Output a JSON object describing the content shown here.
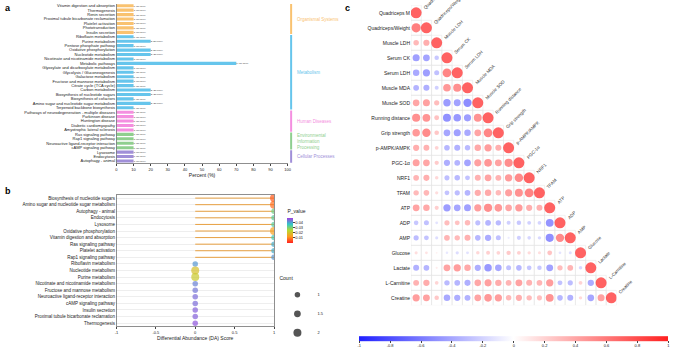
{
  "chart_data": [
    {
      "type": "bar",
      "title": "a",
      "orientation": "horizontal",
      "x_label": "Percent (%)",
      "xlim": [
        0,
        100
      ],
      "xticks": [
        0,
        10,
        20,
        30,
        40,
        50,
        60,
        70,
        80,
        90,
        100
      ],
      "categories": [
        "Vitamin digestion and absorption",
        "Thermogenesis",
        "Renin secretion",
        "Proximal tubule bicarbonate reclamation",
        "Platelet activation",
        "Phototransduction",
        "Insulin secretion",
        "Riboflavin metabolism",
        "Purine metabolism",
        "Pentose phosphate pathway",
        "Oxidative phosphorylation",
        "Nucleotide metabolism",
        "Nicotinate and nicotinamide metabolism",
        "Metabolic pathways",
        "Glyoxylate and dicarboxylate metabolism",
        "Glycolysis / Gluconeogenesis",
        "Galactose metabolism",
        "Fructose and mannose metabolism",
        "Citrate cycle (TCA cycle)",
        "Carbon metabolism",
        "Biosynthesis of nucleotide sugars",
        "Biosynthesis of cofactors",
        "Amino sugar and nucleotide sugar metabolism",
        "Terpenoid backbone biosynthesis",
        "Pathways of neurodegeneration - multiple diseases",
        "Parkinson disease",
        "Huntington disease",
        "Diabetic cardiomyopathy",
        "Amyotrophic lateral sclerosis",
        "Ras signaling pathway",
        "Rap1 signaling pathway",
        "Neuroactive ligand-receptor interaction",
        "cAMP signaling pathway",
        "Lysosome",
        "Endocytosis",
        "Autophagy - animal"
      ],
      "series": [
        {
          "name": "Organismal Systems",
          "color": "#f9c270",
          "values": [
            10,
            10,
            10,
            10,
            10,
            10,
            10,
            null,
            null,
            null,
            null,
            null,
            null,
            null,
            null,
            null,
            null,
            null,
            null,
            null,
            null,
            null,
            null,
            null,
            null,
            null,
            null,
            null,
            null,
            null,
            null,
            null,
            null,
            null,
            null,
            null
          ],
          "value_labels": [
            "1 (10.00%)",
            "1 (10.00%)",
            "1 (10.00%)",
            "1 (10.00%)",
            "1 (10.00%)",
            "1 (10.00%)",
            "1 (10.00%)",
            null,
            null,
            null,
            null,
            null,
            null,
            null,
            null,
            null,
            null,
            null,
            null,
            null,
            null,
            null,
            null,
            null,
            null,
            null,
            null,
            null,
            null,
            null,
            null,
            null,
            null,
            null,
            null,
            null
          ]
        },
        {
          "name": "Metabolism",
          "color": "#66c5ec",
          "values": [
            null,
            null,
            null,
            null,
            null,
            null,
            null,
            10,
            20,
            10,
            20,
            20,
            10,
            70,
            10,
            10,
            10,
            10,
            10,
            20,
            20,
            10,
            20,
            10,
            null,
            null,
            null,
            null,
            null,
            null,
            null,
            null,
            null,
            null,
            null,
            null
          ],
          "value_labels": [
            null,
            null,
            null,
            null,
            null,
            null,
            null,
            "1 (10.00%)",
            "2 (20.00%)",
            "1 (10.00%)",
            "2 (20.00%)",
            "2 (20.00%)",
            "1 (10.00%)",
            "7 (70.00%)",
            "1 (10.00%)",
            "1 (10.00%)",
            "1 (10.00%)",
            "1 (10.00%)",
            "1 (10.00%)",
            "2 (20.00%)",
            "2 (20.00%)",
            "1 (10.00%)",
            "2 (20.00%)",
            "1 (10.00%)",
            null,
            null,
            null,
            null,
            null,
            null,
            null,
            null,
            null,
            null,
            null,
            null
          ]
        },
        {
          "name": "Human Diseases",
          "color": "#f48fe0",
          "values": [
            null,
            null,
            null,
            null,
            null,
            null,
            null,
            null,
            null,
            null,
            null,
            null,
            null,
            null,
            null,
            null,
            null,
            null,
            null,
            null,
            null,
            null,
            null,
            null,
            10,
            10,
            10,
            10,
            10,
            null,
            null,
            null,
            null,
            null,
            null,
            null
          ],
          "value_labels": [
            null,
            null,
            null,
            null,
            null,
            null,
            null,
            null,
            null,
            null,
            null,
            null,
            null,
            null,
            null,
            null,
            null,
            null,
            null,
            null,
            null,
            null,
            null,
            null,
            "1 (10.00%)",
            "1 (10.00%)",
            "1 (10.00%)",
            "1 (10.00%)",
            "1 (10.00%)",
            null,
            null,
            null,
            null,
            null,
            null,
            null
          ]
        },
        {
          "name": "Environmental Information Processing",
          "color": "#8fcf8f",
          "values": [
            null,
            null,
            null,
            null,
            null,
            null,
            null,
            null,
            null,
            null,
            null,
            null,
            null,
            null,
            null,
            null,
            null,
            null,
            null,
            null,
            null,
            null,
            null,
            null,
            null,
            null,
            null,
            null,
            null,
            10,
            10,
            10,
            10,
            null,
            null,
            null
          ],
          "value_labels": [
            null,
            null,
            null,
            null,
            null,
            null,
            null,
            null,
            null,
            null,
            null,
            null,
            null,
            null,
            null,
            null,
            null,
            null,
            null,
            null,
            null,
            null,
            null,
            null,
            null,
            null,
            null,
            null,
            null,
            "1 (10.00%)",
            "1 (10.00%)",
            "1 (10.00%)",
            "1 (10.00%)",
            null,
            null,
            null
          ]
        },
        {
          "name": "Cellular Processes",
          "color": "#a08fd8",
          "values": [
            null,
            null,
            null,
            null,
            null,
            null,
            null,
            null,
            null,
            null,
            null,
            null,
            null,
            null,
            null,
            null,
            null,
            null,
            null,
            null,
            null,
            null,
            null,
            null,
            null,
            null,
            null,
            null,
            null,
            null,
            null,
            null,
            null,
            10,
            10,
            10
          ],
          "value_labels": [
            null,
            null,
            null,
            null,
            null,
            null,
            null,
            null,
            null,
            null,
            null,
            null,
            null,
            null,
            null,
            null,
            null,
            null,
            null,
            null,
            null,
            null,
            null,
            null,
            null,
            null,
            null,
            null,
            null,
            null,
            null,
            null,
            null,
            "1 (10.00%)",
            "1 (10.00%)",
            "1 (10.00%)"
          ]
        }
      ]
    },
    {
      "type": "scatter",
      "title": "b",
      "x_label": "Differential Abundance (DA) Score",
      "xlim": [
        -1,
        1
      ],
      "xticks": [
        -1,
        -0.5,
        0,
        0.5,
        1
      ],
      "categories": [
        "Biosynthesis of nucleotide sugars",
        "Amino sugar and nucleotide sugar metabolism",
        "Autophagy - animal",
        "Endocytosis",
        "Lysosome",
        "Oxidative phosphorylation",
        "Vitamin digestion and absorption",
        "Ras signaling pathway",
        "Platelet activation",
        "Rap1 signaling pathway",
        "Riboflavin metabolism",
        "Nucleotide metabolism",
        "Purine metabolism",
        "Nicotinate and nicotinamide metabolism",
        "Fructose and mannose metabolism",
        "Neuroactive ligand-receptor interaction",
        "cAMP signaling pathway",
        "Insulin secretion",
        "Proximal tubule bicarbonate reclamation",
        "Thermogenesis"
      ],
      "values": [
        1,
        1,
        1,
        1,
        1,
        1,
        1,
        1,
        1,
        1,
        0,
        0,
        0,
        0,
        0,
        0,
        0,
        0,
        0,
        0
      ],
      "counts": [
        2,
        2,
        1,
        1,
        1,
        2,
        1,
        1,
        1,
        1,
        1,
        2,
        2,
        1,
        1,
        1,
        1,
        1,
        1,
        1
      ],
      "p_values": [
        0.006,
        0.008,
        0.032,
        0.034,
        0.034,
        0.014,
        0.036,
        0.04,
        0.04,
        0.042,
        0.042,
        0.02,
        0.022,
        0.044,
        0.045,
        0.046,
        0.046,
        0.047,
        0.047,
        0.048
      ],
      "colorbar": {
        "title": "P_value",
        "range": [
          0,
          0.05
        ],
        "ticks": [
          0.01,
          0.02,
          0.03,
          0.04
        ]
      },
      "size_legend": {
        "title": "Count",
        "values": [
          1,
          1.5,
          2
        ]
      }
    },
    {
      "type": "correlation",
      "title": "c",
      "variables": [
        "Quadriceps M",
        "Quadriceps/Weight",
        "Muscle LDH",
        "Serum CK",
        "Serum LDH",
        "Muscle MDA",
        "Muscle SOD",
        "Running distance",
        "Grip strength",
        "p-AMPK/AMPK",
        "PGC-1α",
        "NRF1",
        "TFAM",
        "ATP",
        "ADP",
        "AMP",
        "Glucose",
        "Lactate",
        "L-Carnitine",
        "Creatine"
      ],
      "matrix": [
        [
          1
        ],
        [
          0.82,
          1
        ],
        [
          0.45,
          0.52,
          1
        ],
        [
          -0.61,
          -0.58,
          -0.35,
          1
        ],
        [
          -0.55,
          -0.62,
          -0.4,
          0.78,
          1
        ],
        [
          -0.48,
          -0.51,
          -0.3,
          0.66,
          0.71,
          1
        ],
        [
          0.57,
          0.6,
          0.42,
          -0.64,
          -0.59,
          -0.73,
          1
        ],
        [
          0.71,
          0.68,
          0.39,
          -0.7,
          -0.66,
          -0.62,
          0.69,
          1
        ],
        [
          0.65,
          0.74,
          0.36,
          -0.57,
          -0.61,
          -0.55,
          0.58,
          0.77,
          1
        ],
        [
          0.52,
          0.49,
          0.28,
          -0.46,
          -0.5,
          -0.44,
          0.55,
          0.63,
          0.51,
          1
        ],
        [
          0.6,
          0.57,
          0.33,
          -0.52,
          -0.48,
          -0.58,
          0.61,
          0.67,
          0.59,
          0.72,
          1
        ],
        [
          0.47,
          0.51,
          0.25,
          -0.41,
          -0.45,
          -0.39,
          0.5,
          0.58,
          0.49,
          0.64,
          0.75,
          1
        ],
        [
          0.44,
          0.46,
          0.22,
          -0.38,
          -0.42,
          -0.47,
          0.53,
          0.55,
          0.45,
          0.61,
          0.7,
          0.79,
          1
        ],
        [
          0.58,
          0.55,
          0.31,
          -0.63,
          -0.57,
          -0.6,
          0.62,
          0.72,
          0.66,
          0.57,
          0.64,
          0.52,
          0.5,
          1
        ],
        [
          -0.36,
          -0.4,
          -0.18,
          0.42,
          0.39,
          0.45,
          -0.41,
          -0.48,
          -0.44,
          -0.3,
          -0.35,
          -0.29,
          -0.27,
          -0.68,
          1
        ],
        [
          -0.42,
          -0.38,
          -0.21,
          0.47,
          0.44,
          0.5,
          -0.46,
          -0.53,
          -0.4,
          -0.12,
          -0.31,
          -0.26,
          -0.24,
          -0.71,
          0.74,
          1
        ],
        [
          0.21,
          0.18,
          0.09,
          -0.15,
          -0.22,
          -0.19,
          0.25,
          0.3,
          0.27,
          0.34,
          0.29,
          0.23,
          0.2,
          0.38,
          -0.17,
          -0.2,
          1
        ],
        [
          -0.5,
          -0.47,
          0.12,
          0.58,
          0.63,
          0.55,
          -0.52,
          -0.65,
          -0.56,
          -0.4,
          -0.46,
          -0.37,
          -0.35,
          -0.59,
          0.43,
          0.48,
          -0.25,
          1
        ],
        [
          0.49,
          0.53,
          0.27,
          -0.44,
          -0.47,
          -0.51,
          0.56,
          0.61,
          0.54,
          0.48,
          0.59,
          0.5,
          0.47,
          0.63,
          -0.39,
          -0.42,
          0.28,
          -0.53,
          1
        ],
        [
          0.62,
          0.59,
          0.35,
          -0.55,
          -0.52,
          -0.49,
          0.58,
          0.66,
          0.63,
          0.45,
          0.52,
          0.44,
          0.41,
          0.69,
          -0.46,
          -0.5,
          0.24,
          -0.57,
          0.6,
          1
        ]
      ],
      "colorbar": {
        "range": [
          -1,
          1
        ],
        "ticks": [
          -1,
          -0.8,
          -0.6,
          -0.4,
          -0.2,
          0,
          0.2,
          0.4,
          0.6,
          0.8,
          1
        ]
      }
    }
  ]
}
